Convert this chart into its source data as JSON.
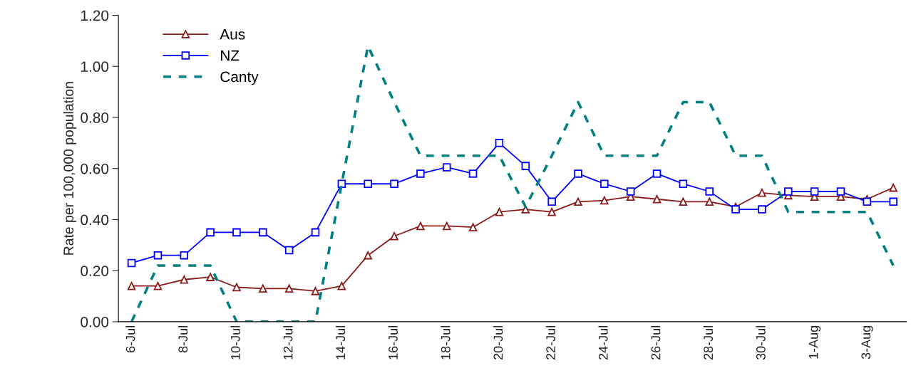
{
  "chart_data": {
    "type": "line",
    "ylabel": "Rate per 100,000 population",
    "categories": [
      "6-Jul",
      null,
      "8-Jul",
      null,
      "10-Jul",
      null,
      "12-Jul",
      null,
      "14-Jul",
      null,
      "16-Jul",
      null,
      "18-Jul",
      null,
      "20-Jul",
      null,
      "22-Jul",
      null,
      "24-Jul",
      null,
      "26-Jul",
      null,
      "28-Jul",
      null,
      "30-Jul",
      null,
      "1-Aug",
      null,
      "3-Aug",
      null
    ],
    "series": [
      {
        "name": "Aus",
        "color": "#8b1a1a",
        "marker": "triangle",
        "line_style": "solid",
        "values": [
          0.14,
          0.14,
          0.165,
          0.175,
          0.135,
          0.13,
          0.13,
          0.12,
          0.14,
          0.26,
          0.335,
          0.375,
          0.375,
          0.37,
          0.43,
          0.44,
          0.43,
          0.47,
          0.475,
          0.49,
          0.48,
          0.47,
          0.47,
          0.45,
          0.505,
          0.495,
          0.49,
          0.49,
          0.48,
          0.525
        ]
      },
      {
        "name": "NZ",
        "color": "#0000ff",
        "marker": "square",
        "line_style": "solid",
        "values": [
          0.23,
          0.26,
          0.26,
          0.35,
          0.35,
          0.35,
          0.28,
          0.35,
          0.54,
          0.54,
          0.54,
          0.58,
          0.605,
          0.58,
          0.7,
          0.61,
          0.47,
          0.58,
          0.54,
          0.51,
          0.58,
          0.54,
          0.51,
          0.44,
          0.44,
          0.51,
          0.51,
          0.51,
          0.47,
          0.47
        ]
      },
      {
        "name": "Canty",
        "color": "#008080",
        "marker": "none",
        "line_style": "dashed",
        "values": [
          0,
          0.22,
          0.22,
          0.22,
          0,
          0,
          0,
          0,
          0.54,
          1.08,
          0.86,
          0.65,
          0.65,
          0.65,
          0.65,
          0.45,
          0.65,
          0.86,
          0.65,
          0.65,
          0.65,
          0.86,
          0.86,
          0.65,
          0.65,
          0.43,
          0.43,
          0.43,
          0.43,
          0.22
        ]
      }
    ],
    "ylim": [
      0,
      1.2
    ],
    "yticks": [
      {
        "value": 0,
        "label": "0.00"
      },
      {
        "value": 0.2,
        "label": "0.20"
      },
      {
        "value": 0.4,
        "label": "0.40"
      },
      {
        "value": 0.6,
        "label": "0.60"
      },
      {
        "value": 0.8,
        "label": "0.80"
      },
      {
        "value": 1.0,
        "label": "1.00"
      },
      {
        "value": 1.2,
        "label": "1.20"
      }
    ],
    "grid": false,
    "legend": "top left"
  }
}
